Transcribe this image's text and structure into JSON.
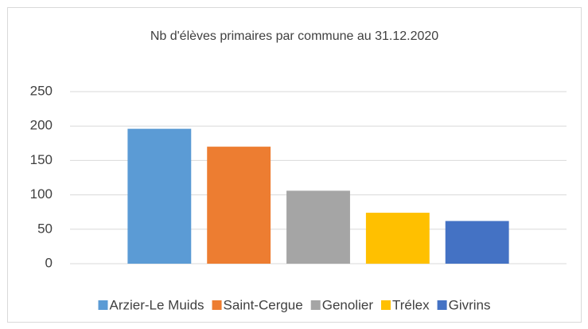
{
  "chart_data": {
    "type": "bar",
    "title": "Nb d'élèves primaires par commune au 31.12.2020",
    "categories": [
      null
    ],
    "series": [
      {
        "name": "Arzier-Le Muids",
        "color": "#5b9bd5",
        "values": [
          196
        ]
      },
      {
        "name": "Saint-Cergue",
        "color": "#ed7d31",
        "values": [
          170
        ]
      },
      {
        "name": "Genolier",
        "color": "#a5a5a5",
        "values": [
          106
        ]
      },
      {
        "name": "Trélex",
        "color": "#ffc000",
        "values": [
          74
        ]
      },
      {
        "name": "Givrins",
        "color": "#4472c4",
        "values": [
          62
        ]
      }
    ],
    "ylim": [
      0,
      250
    ],
    "yticks": [
      0,
      50,
      100,
      150,
      200,
      250
    ],
    "grid": true,
    "legend": "bottom"
  }
}
